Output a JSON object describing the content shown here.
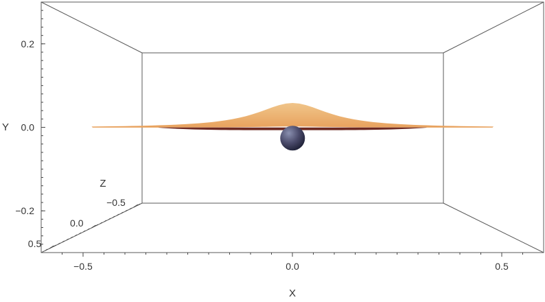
{
  "chart_data": {
    "type": "surface3d",
    "title": "",
    "axes": {
      "x": {
        "label": "X",
        "ticks": [
          -0.5,
          0.0,
          0.5
        ],
        "tick_labels": [
          "−0.5",
          "0.0",
          "0.5"
        ],
        "range": [
          -0.6,
          0.6
        ]
      },
      "y": {
        "label": "Y",
        "ticks": [
          -0.2,
          0.0,
          0.2
        ],
        "tick_labels": [
          "−0.2",
          "0.0",
          "0.2"
        ],
        "range": [
          -0.3,
          0.3
        ]
      },
      "z": {
        "label": "Z",
        "ticks": [
          -0.5,
          0.0,
          0.5
        ],
        "tick_labels": [
          "−0.5",
          "0.0",
          "0.5"
        ],
        "range": [
          -0.6,
          0.6
        ]
      }
    },
    "surface": {
      "color": "#e8a25e",
      "edge_color": "#6e2a22",
      "peak_height": 0.074,
      "x_profile": [
        [
          -0.6,
          0.0
        ],
        [
          -0.5,
          0.002
        ],
        [
          -0.4,
          0.006
        ],
        [
          -0.3,
          0.012
        ],
        [
          -0.2,
          0.024
        ],
        [
          -0.1,
          0.05
        ],
        [
          0.0,
          0.074
        ],
        [
          0.1,
          0.05
        ],
        [
          0.2,
          0.024
        ],
        [
          0.3,
          0.012
        ],
        [
          0.4,
          0.006
        ],
        [
          0.5,
          0.002
        ],
        [
          0.6,
          0.0
        ]
      ]
    },
    "sphere": {
      "center": [
        0.0,
        -0.015,
        0.0
      ],
      "radius": 0.037,
      "color": "#4a4a6a"
    },
    "box": true,
    "grid": false,
    "legend": "none"
  }
}
